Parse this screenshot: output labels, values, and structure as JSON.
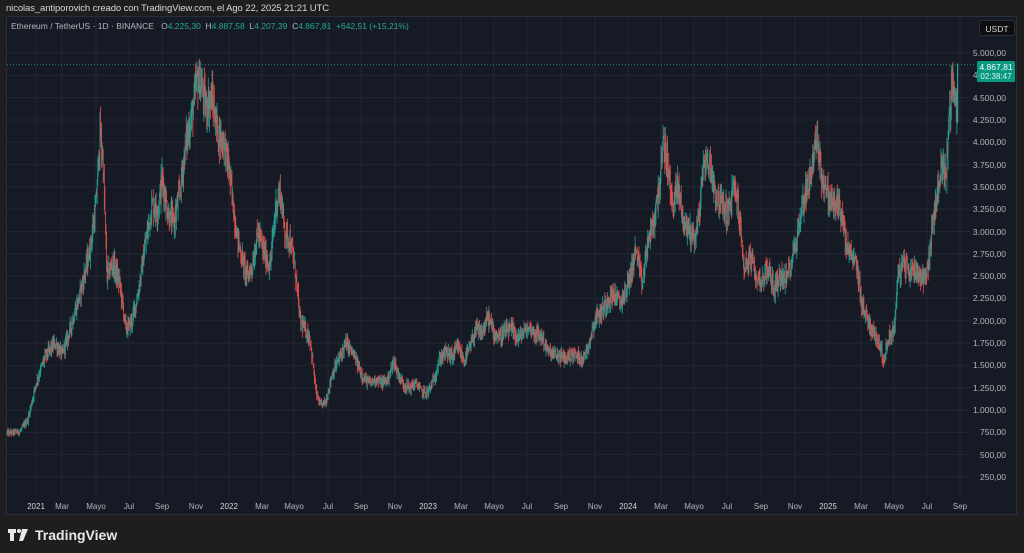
{
  "credit": "nicolas_antiporovich creado con TradingView.com, el Ago 22, 2025 21:21 UTC",
  "legend": {
    "symbol": "Ethereum / TetherUS · 1D · BINANCE",
    "open_label": "O",
    "open": "4.225,30",
    "high_label": "H",
    "high": "4.887,58",
    "low_label": "L",
    "low": "4.207,39",
    "close_label": "C",
    "close": "4.867,81",
    "change": "+642,51 (+15,21%)"
  },
  "currency_button": "USDT",
  "last_price": {
    "value": "4.867,81",
    "countdown": "02:38:47"
  },
  "brand": "TradingView",
  "colors": {
    "up": "#26a69a",
    "down": "#ef5350",
    "background": "#161a25",
    "grid": "#232733",
    "badge": "#089981"
  },
  "chart_data": {
    "type": "candlestick",
    "title": "Ethereum / TetherUS · 1D · BINANCE",
    "xlabel": "",
    "ylabel": "USDT",
    "ylim": [
      0,
      5150
    ],
    "grid": true,
    "y_ticks": [
      "5.000,00",
      "4.750,00",
      "4.500,00",
      "4.250,00",
      "4.000,00",
      "3.750,00",
      "3.500,00",
      "3.250,00",
      "3.000,00",
      "2.750,00",
      "2.500,00",
      "2.250,00",
      "2.000,00",
      "1.750,00",
      "1.500,00",
      "1.250,00",
      "1.000,00",
      "750,00",
      "500,00",
      "250,00"
    ],
    "y_tick_values": [
      5000,
      4750,
      4500,
      4250,
      4000,
      3750,
      3500,
      3250,
      3000,
      2750,
      2500,
      2250,
      2000,
      1750,
      1500,
      1250,
      1000,
      750,
      500,
      250
    ],
    "x_ticks": [
      "2021",
      "Mar",
      "Mayo",
      "Jul",
      "Sep",
      "Nov",
      "2022",
      "Mar",
      "Mayo",
      "Jul",
      "Sep",
      "Nov",
      "2023",
      "Mar",
      "Mayo",
      "Jul",
      "Sep",
      "Nov",
      "2024",
      "Mar",
      "Mayo",
      "Jul",
      "Sep",
      "Nov",
      "2025",
      "Mar",
      "Mayo",
      "Jul",
      "Sep"
    ],
    "x_tick_pos": [
      36,
      62,
      96,
      129,
      162,
      196,
      229,
      262,
      294,
      328,
      361,
      395,
      428,
      461,
      494,
      527,
      561,
      595,
      628,
      661,
      694,
      727,
      761,
      795,
      828,
      861,
      894,
      927,
      960
    ],
    "year_ticks": [
      "2021",
      "2022",
      "2023",
      "2024",
      "2025"
    ],
    "price_path": {
      "description": "Approximate monthly ETH/USDT closing levels (control points, x = pixel, price in USDT)",
      "points": [
        [
          7,
          740
        ],
        [
          20,
          760
        ],
        [
          28,
          900
        ],
        [
          36,
          1300
        ],
        [
          45,
          1600
        ],
        [
          55,
          1750
        ],
        [
          62,
          1620
        ],
        [
          70,
          1900
        ],
        [
          80,
          2300
        ],
        [
          90,
          2800
        ],
        [
          96,
          3300
        ],
        [
          100,
          4100
        ],
        [
          103,
          3800
        ],
        [
          107,
          2500
        ],
        [
          113,
          2650
        ],
        [
          120,
          2400
        ],
        [
          126,
          1900
        ],
        [
          132,
          2000
        ],
        [
          138,
          2300
        ],
        [
          146,
          2900
        ],
        [
          152,
          3300
        ],
        [
          158,
          3250
        ],
        [
          162,
          3600
        ],
        [
          168,
          3200
        ],
        [
          174,
          3100
        ],
        [
          180,
          3450
        ],
        [
          186,
          4000
        ],
        [
          192,
          4300
        ],
        [
          197,
          4700
        ],
        [
          201,
          4650
        ],
        [
          206,
          4400
        ],
        [
          212,
          4500
        ],
        [
          218,
          4100
        ],
        [
          224,
          4000
        ],
        [
          229,
          3700
        ],
        [
          234,
          3200
        ],
        [
          238,
          2900
        ],
        [
          242,
          2700
        ],
        [
          247,
          2500
        ],
        [
          252,
          2600
        ],
        [
          258,
          3000
        ],
        [
          263,
          2800
        ],
        [
          270,
          2600
        ],
        [
          276,
          3300
        ],
        [
          280,
          3450
        ],
        [
          285,
          3000
        ],
        [
          290,
          2900
        ],
        [
          296,
          2500
        ],
        [
          300,
          2000
        ],
        [
          305,
          1900
        ],
        [
          310,
          1800
        ],
        [
          316,
          1200
        ],
        [
          320,
          1050
        ],
        [
          326,
          1100
        ],
        [
          332,
          1400
        ],
        [
          340,
          1600
        ],
        [
          346,
          1750
        ],
        [
          352,
          1650
        ],
        [
          358,
          1500
        ],
        [
          364,
          1350
        ],
        [
          370,
          1300
        ],
        [
          376,
          1350
        ],
        [
          382,
          1300
        ],
        [
          388,
          1350
        ],
        [
          394,
          1550
        ],
        [
          398,
          1400
        ],
        [
          404,
          1280
        ],
        [
          410,
          1250
        ],
        [
          416,
          1300
        ],
        [
          422,
          1200
        ],
        [
          428,
          1200
        ],
        [
          434,
          1350
        ],
        [
          440,
          1580
        ],
        [
          446,
          1650
        ],
        [
          452,
          1600
        ],
        [
          458,
          1700
        ],
        [
          464,
          1550
        ],
        [
          470,
          1700
        ],
        [
          476,
          1900
        ],
        [
          482,
          1850
        ],
        [
          488,
          2050
        ],
        [
          494,
          1860
        ],
        [
          500,
          1820
        ],
        [
          506,
          1880
        ],
        [
          512,
          1900
        ],
        [
          518,
          1800
        ],
        [
          524,
          1880
        ],
        [
          530,
          1920
        ],
        [
          536,
          1850
        ],
        [
          542,
          1820
        ],
        [
          548,
          1650
        ],
        [
          554,
          1620
        ],
        [
          560,
          1600
        ],
        [
          566,
          1580
        ],
        [
          572,
          1630
        ],
        [
          578,
          1600
        ],
        [
          584,
          1580
        ],
        [
          590,
          1800
        ],
        [
          596,
          2050
        ],
        [
          602,
          2100
        ],
        [
          608,
          2250
        ],
        [
          614,
          2300
        ],
        [
          620,
          2200
        ],
        [
          626,
          2350
        ],
        [
          630,
          2500
        ],
        [
          636,
          2800
        ],
        [
          642,
          2400
        ],
        [
          648,
          2900
        ],
        [
          654,
          3100
        ],
        [
          660,
          3600
        ],
        [
          664,
          4000
        ],
        [
          668,
          3700
        ],
        [
          672,
          3300
        ],
        [
          678,
          3500
        ],
        [
          684,
          3100
        ],
        [
          690,
          3000
        ],
        [
          696,
          2950
        ],
        [
          700,
          3300
        ],
        [
          704,
          3800
        ],
        [
          710,
          3750
        ],
        [
          716,
          3400
        ],
        [
          722,
          3300
        ],
        [
          728,
          3200
        ],
        [
          734,
          3500
        ],
        [
          738,
          3300
        ],
        [
          744,
          2600
        ],
        [
          750,
          2700
        ],
        [
          756,
          2500
        ],
        [
          762,
          2450
        ],
        [
          768,
          2600
        ],
        [
          774,
          2350
        ],
        [
          780,
          2500
        ],
        [
          786,
          2450
        ],
        [
          792,
          2700
        ],
        [
          798,
          3000
        ],
        [
          804,
          3400
        ],
        [
          810,
          3600
        ],
        [
          814,
          3900
        ],
        [
          818,
          4000
        ],
        [
          822,
          3600
        ],
        [
          828,
          3400
        ],
        [
          834,
          3300
        ],
        [
          840,
          3300
        ],
        [
          846,
          2850
        ],
        [
          852,
          2700
        ],
        [
          856,
          2650
        ],
        [
          862,
          2200
        ],
        [
          868,
          2000
        ],
        [
          874,
          1850
        ],
        [
          878,
          1800
        ],
        [
          884,
          1550
        ],
        [
          888,
          1800
        ],
        [
          894,
          1900
        ],
        [
          898,
          2500
        ],
        [
          904,
          2650
        ],
        [
          910,
          2550
        ],
        [
          916,
          2600
        ],
        [
          920,
          2500
        ],
        [
          926,
          2500
        ],
        [
          930,
          2800
        ],
        [
          934,
          3200
        ],
        [
          938,
          3500
        ],
        [
          942,
          3750
        ],
        [
          946,
          3650
        ],
        [
          950,
          4400
        ],
        [
          953,
          4700
        ],
        [
          956,
          4300
        ],
        [
          958,
          4867
        ]
      ]
    },
    "last": {
      "open": 4225.3,
      "high": 4887.58,
      "low": 4207.39,
      "close": 4867.81,
      "change": 642.51,
      "change_pct": 15.21
    }
  }
}
